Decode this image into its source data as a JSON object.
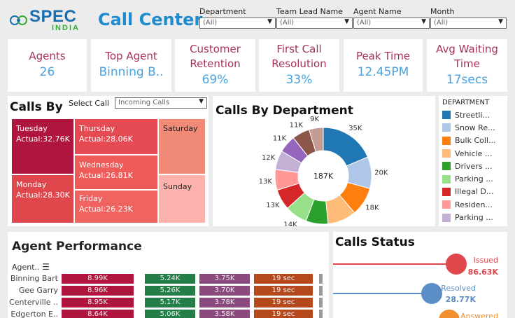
{
  "header": {
    "logo_spec": "SPEC",
    "logo_india": "INDIA",
    "title": "Call Center",
    "filters": [
      {
        "label": "Department",
        "value": "(All)"
      },
      {
        "label": "Team Lead Name",
        "value": "(All)"
      },
      {
        "label": "Agent Name",
        "value": "(All)"
      },
      {
        "label": "Month",
        "value": "(All)"
      }
    ]
  },
  "kpis": [
    {
      "label": "Agents",
      "value": "26"
    },
    {
      "label": "Top Agent",
      "value": "Binning B.."
    },
    {
      "label": "Customer Retention",
      "value": "69%"
    },
    {
      "label": "First Call Resolution",
      "value": "33%"
    },
    {
      "label": "Peak Time",
      "value": "12.45PM"
    },
    {
      "label": "Avg Waiting Time",
      "value": "17secs"
    }
  ],
  "calls_by": {
    "title": "Calls By",
    "select_label": "Select Call",
    "select_value": "Incoming Calls",
    "days": [
      {
        "day": "Tuesday",
        "actual": "Actual:32.76K"
      },
      {
        "day": "Monday",
        "actual": "Actual:28.30K"
      },
      {
        "day": "Thursday",
        "actual": "Actual:28.06K"
      },
      {
        "day": "Wednesday",
        "actual": "Actual:26.81K"
      },
      {
        "day": "Friday",
        "actual": "Actual:26.23K"
      },
      {
        "day": "Saturday",
        "actual": ""
      },
      {
        "day": "Sunday",
        "actual": ""
      }
    ]
  },
  "calls_by_department": {
    "title": "Calls By Department",
    "total": "187K",
    "legend_title": "DEPARTMENT",
    "legend": [
      {
        "name": "Streetli...",
        "color": "#1f77b4"
      },
      {
        "name": "Snow Re...",
        "color": "#aec7e8"
      },
      {
        "name": "Bulk Coll...",
        "color": "#ff7f0e"
      },
      {
        "name": "Vehicle ...",
        "color": "#ffbb78"
      },
      {
        "name": "Drivers ...",
        "color": "#2ca02c"
      },
      {
        "name": "Parking ...",
        "color": "#98df8a"
      },
      {
        "name": "Illegal D...",
        "color": "#d62728"
      },
      {
        "name": "Residen...",
        "color": "#ff9896"
      },
      {
        "name": "Parking ...",
        "color": "#c5b0d5"
      }
    ]
  },
  "chart_data": {
    "type": "pie",
    "title": "Calls By Department",
    "categories": [
      "Streetli...",
      "Snow Re...",
      "Bulk Coll...",
      "Vehicle ...",
      "Drivers ...",
      "Parking ...",
      "Illegal D...",
      "Residen...",
      "Parking ...",
      "",
      "",
      ""
    ],
    "values": [
      35,
      20,
      18,
      18,
      14,
      14,
      13,
      13,
      12,
      11,
      11,
      9
    ],
    "labels": [
      "35K",
      "20K",
      "18K",
      "18K",
      "14K",
      "14K",
      "13K",
      "13K",
      "12K",
      "11K",
      "11K",
      "9K"
    ],
    "colors": [
      "#1f77b4",
      "#aec7e8",
      "#ff7f0e",
      "#ffbb78",
      "#2ca02c",
      "#98df8a",
      "#d62728",
      "#ff9896",
      "#c5b0d5",
      "#9467bd",
      "#8c564b",
      "#c49c94"
    ],
    "center_label": "187K",
    "legend": "right"
  },
  "agent_performance": {
    "title": "Agent Performance",
    "col_header": "Agent..",
    "rows": [
      {
        "name": "Binning Bart",
        "v1": "8.99K",
        "v2": "5.24K",
        "v3": "3.75K",
        "v4": "19 sec"
      },
      {
        "name": "Gee Garry",
        "v1": "8.96K",
        "v2": "5.26K",
        "v3": "3.70K",
        "v4": "19 sec"
      },
      {
        "name": "Centerville ..",
        "v1": "8.95K",
        "v2": "5.17K",
        "v3": "3.78K",
        "v4": "19 sec"
      },
      {
        "name": "Edgerton E..",
        "v1": "8.64K",
        "v2": "5.06K",
        "v3": "3.58K",
        "v4": "19 sec"
      }
    ]
  },
  "calls_status": {
    "title": "Calls Status",
    "items": [
      {
        "label": "Issued",
        "value": "86.63K",
        "color": "#e0474c"
      },
      {
        "label": "Resolved",
        "value": "28.77K",
        "color": "#5b8ec7"
      },
      {
        "label": "Answered",
        "value": "",
        "color": "#f28e2b"
      }
    ]
  }
}
